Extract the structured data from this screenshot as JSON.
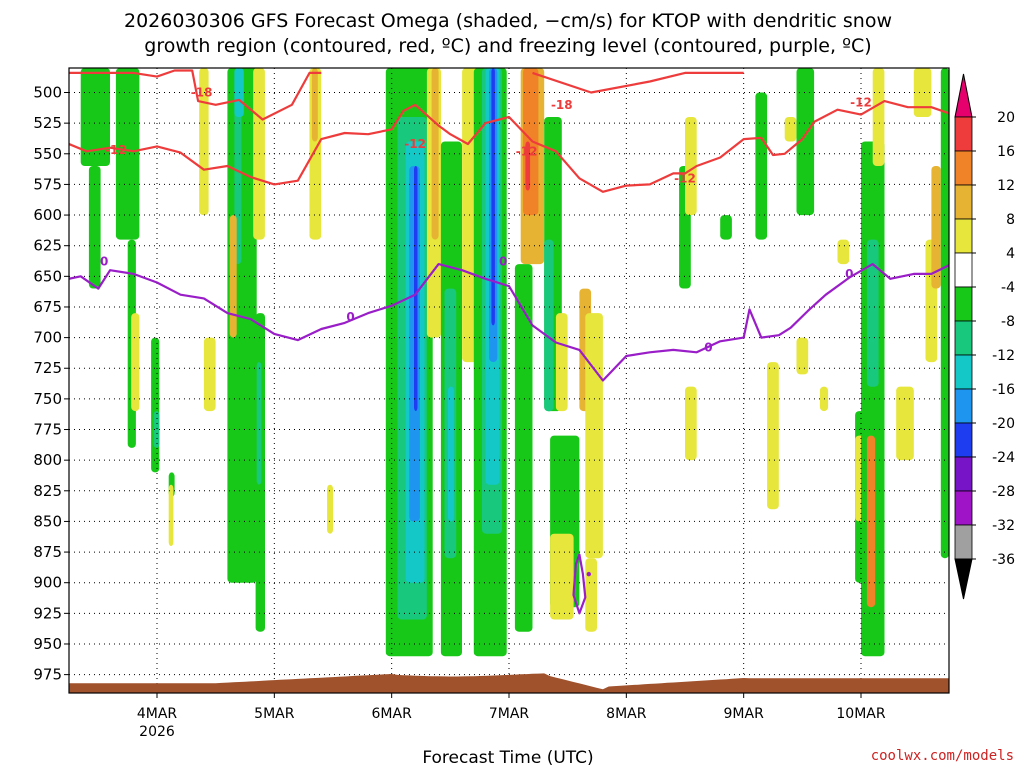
{
  "chart_data": {
    "type": "heatmap",
    "title": "2026030306 GFS Forecast Omega (shaded, −cm/s) for KTOP with dendritic snow",
    "subtitle": "growth region (contoured, red, ºC) and freezing level (contoured, purple, ºC)",
    "xlabel": "Forecast Time (UTC)",
    "credit": "coolwx.com/models",
    "x_day_start": 3.25,
    "x_day_end": 10.75,
    "x_ticks": [
      {
        "day": 4,
        "label": "4MAR",
        "sub": "2026"
      },
      {
        "day": 5,
        "label": "5MAR",
        "sub": ""
      },
      {
        "day": 6,
        "label": "6MAR",
        "sub": ""
      },
      {
        "day": 7,
        "label": "7MAR",
        "sub": ""
      },
      {
        "day": 8,
        "label": "8MAR",
        "sub": ""
      },
      {
        "day": 9,
        "label": "9MAR",
        "sub": ""
      },
      {
        "day": 10,
        "label": "10MAR",
        "sub": ""
      }
    ],
    "y_range_hpa": [
      480,
      990
    ],
    "y_ticks": [
      "500",
      "525",
      "550",
      "575",
      "600",
      "625",
      "650",
      "675",
      "700",
      "725",
      "750",
      "775",
      "800",
      "825",
      "850",
      "875",
      "900",
      "925",
      "950",
      "975"
    ],
    "colorbar": {
      "levels": [
        "20",
        "16",
        "12",
        "8",
        "4",
        "-4",
        "-8",
        "-12",
        "-16",
        "-20",
        "-24",
        "-28",
        "-32",
        "-36"
      ],
      "colors": [
        "#ee3c3c",
        "#f08228",
        "#e6b432",
        "#e6e63c",
        "#ffffff",
        "#18c818",
        "#18c87d",
        "#14c8c8",
        "#1e96f0",
        "#1e3cf0",
        "#7814c8",
        "#a014c8",
        "#a0a0a0"
      ],
      "top_arrow_color": "#e6006e",
      "bottom_arrow_color": "#000000"
    },
    "omega_shading": [
      {
        "d0": 3.35,
        "d1": 3.6,
        "p0": 480,
        "p1": 560,
        "cat": -8
      },
      {
        "d0": 3.42,
        "d1": 3.52,
        "p0": 560,
        "p1": 660,
        "cat": -8
      },
      {
        "d0": 3.65,
        "d1": 3.85,
        "p0": 480,
        "p1": 620,
        "cat": -8
      },
      {
        "d0": 3.75,
        "d1": 3.82,
        "p0": 620,
        "p1": 790,
        "cat": -8
      },
      {
        "d0": 3.78,
        "d1": 3.85,
        "p0": 680,
        "p1": 760,
        "cat": 4
      },
      {
        "d0": 3.95,
        "d1": 4.02,
        "p0": 700,
        "p1": 810,
        "cat": -8
      },
      {
        "d0": 3.97,
        "d1": 4.02,
        "p0": 760,
        "p1": 790,
        "cat": -12
      },
      {
        "d0": 4.36,
        "d1": 4.44,
        "p0": 480,
        "p1": 600,
        "cat": 4
      },
      {
        "d0": 4.4,
        "d1": 4.5,
        "p0": 700,
        "p1": 760,
        "cat": 4
      },
      {
        "d0": 4.1,
        "d1": 4.15,
        "p0": 810,
        "p1": 830,
        "cat": -8
      },
      {
        "d0": 4.1,
        "d1": 4.14,
        "p0": 820,
        "p1": 870,
        "cat": 4
      },
      {
        "d0": 4.62,
        "d1": 4.72,
        "p0": 480,
        "p1": 560,
        "cat": 4
      },
      {
        "d0": 4.6,
        "d1": 4.85,
        "p0": 480,
        "p1": 900,
        "cat": -8
      },
      {
        "d0": 4.66,
        "d1": 4.72,
        "p0": 480,
        "p1": 640,
        "cat": -12
      },
      {
        "d0": 4.66,
        "d1": 4.74,
        "p0": 480,
        "p1": 520,
        "cat": -16
      },
      {
        "d0": 4.62,
        "d1": 4.68,
        "p0": 600,
        "p1": 700,
        "cat": 8
      },
      {
        "d0": 4.82,
        "d1": 4.92,
        "p0": 480,
        "p1": 620,
        "cat": 4
      },
      {
        "d0": 4.84,
        "d1": 4.92,
        "p0": 680,
        "p1": 940,
        "cat": -8
      },
      {
        "d0": 4.85,
        "d1": 4.89,
        "p0": 720,
        "p1": 820,
        "cat": -12
      },
      {
        "d0": 5.3,
        "d1": 5.4,
        "p0": 480,
        "p1": 620,
        "cat": 4
      },
      {
        "d0": 5.32,
        "d1": 5.37,
        "p0": 480,
        "p1": 540,
        "cat": 8
      },
      {
        "d0": 5.45,
        "d1": 5.5,
        "p0": 820,
        "p1": 860,
        "cat": 4
      },
      {
        "d0": 5.95,
        "d1": 6.35,
        "p0": 480,
        "p1": 960,
        "cat": -8
      },
      {
        "d0": 6.05,
        "d1": 6.3,
        "p0": 520,
        "p1": 930,
        "cat": -12
      },
      {
        "d0": 6.12,
        "d1": 6.28,
        "p0": 540,
        "p1": 900,
        "cat": -16
      },
      {
        "d0": 6.15,
        "d1": 6.24,
        "p0": 560,
        "p1": 850,
        "cat": -20
      },
      {
        "d0": 6.19,
        "d1": 6.22,
        "p0": 560,
        "p1": 760,
        "cat": -24
      },
      {
        "d0": 6.3,
        "d1": 6.42,
        "p0": 480,
        "p1": 700,
        "cat": 4
      },
      {
        "d0": 6.34,
        "d1": 6.4,
        "p0": 480,
        "p1": 620,
        "cat": 8
      },
      {
        "d0": 6.42,
        "d1": 6.6,
        "p0": 540,
        "p1": 960,
        "cat": -8
      },
      {
        "d0": 6.45,
        "d1": 6.55,
        "p0": 660,
        "p1": 880,
        "cat": -12
      },
      {
        "d0": 6.48,
        "d1": 6.53,
        "p0": 740,
        "p1": 850,
        "cat": -16
      },
      {
        "d0": 6.6,
        "d1": 6.75,
        "p0": 480,
        "p1": 720,
        "cat": 4
      },
      {
        "d0": 6.7,
        "d1": 6.98,
        "p0": 480,
        "p1": 960,
        "cat": -8
      },
      {
        "d0": 6.77,
        "d1": 6.94,
        "p0": 480,
        "p1": 860,
        "cat": -12
      },
      {
        "d0": 6.8,
        "d1": 6.92,
        "p0": 480,
        "p1": 820,
        "cat": -16
      },
      {
        "d0": 6.83,
        "d1": 6.9,
        "p0": 480,
        "p1": 720,
        "cat": -20
      },
      {
        "d0": 6.85,
        "d1": 6.88,
        "p0": 480,
        "p1": 690,
        "cat": -24
      },
      {
        "d0": 7.1,
        "d1": 7.3,
        "p0": 480,
        "p1": 640,
        "cat": 8
      },
      {
        "d0": 7.12,
        "d1": 7.25,
        "p0": 480,
        "p1": 600,
        "cat": 12
      },
      {
        "d0": 7.14,
        "d1": 7.18,
        "p0": 540,
        "p1": 580,
        "cat": 16
      },
      {
        "d0": 7.05,
        "d1": 7.2,
        "p0": 640,
        "p1": 940,
        "cat": -8
      },
      {
        "d0": 7.3,
        "d1": 7.45,
        "p0": 520,
        "p1": 760,
        "cat": -8
      },
      {
        "d0": 7.3,
        "d1": 7.38,
        "p0": 620,
        "p1": 760,
        "cat": -12
      },
      {
        "d0": 7.4,
        "d1": 7.5,
        "p0": 680,
        "p1": 760,
        "cat": 4
      },
      {
        "d0": 7.35,
        "d1": 7.6,
        "p0": 780,
        "p1": 920,
        "cat": -8
      },
      {
        "d0": 7.35,
        "d1": 7.55,
        "p0": 860,
        "p1": 930,
        "cat": 4
      },
      {
        "d0": 7.6,
        "d1": 7.7,
        "p0": 660,
        "p1": 760,
        "cat": 8
      },
      {
        "d0": 7.65,
        "d1": 7.8,
        "p0": 680,
        "p1": 880,
        "cat": 4
      },
      {
        "d0": 7.65,
        "d1": 7.75,
        "p0": 880,
        "p1": 940,
        "cat": 4
      },
      {
        "d0": 8.45,
        "d1": 8.55,
        "p0": 560,
        "p1": 660,
        "cat": -8
      },
      {
        "d0": 8.5,
        "d1": 8.6,
        "p0": 740,
        "p1": 800,
        "cat": 4
      },
      {
        "d0": 8.5,
        "d1": 8.6,
        "p0": 520,
        "p1": 600,
        "cat": 4
      },
      {
        "d0": 8.8,
        "d1": 8.9,
        "p0": 600,
        "p1": 620,
        "cat": -8
      },
      {
        "d0": 9.1,
        "d1": 9.2,
        "p0": 500,
        "p1": 620,
        "cat": -8
      },
      {
        "d0": 9.2,
        "d1": 9.3,
        "p0": 720,
        "p1": 840,
        "cat": 4
      },
      {
        "d0": 9.35,
        "d1": 9.45,
        "p0": 520,
        "p1": 540,
        "cat": 4
      },
      {
        "d0": 9.45,
        "d1": 9.6,
        "p0": 480,
        "p1": 600,
        "cat": -8
      },
      {
        "d0": 9.45,
        "d1": 9.55,
        "p0": 700,
        "p1": 730,
        "cat": 4
      },
      {
        "d0": 9.65,
        "d1": 9.72,
        "p0": 740,
        "p1": 760,
        "cat": 4
      },
      {
        "d0": 9.8,
        "d1": 9.9,
        "p0": 620,
        "p1": 640,
        "cat": 4
      },
      {
        "d0": 9.95,
        "d1": 10.05,
        "p0": 760,
        "p1": 900,
        "cat": -8
      },
      {
        "d0": 9.95,
        "d1": 10.05,
        "p0": 780,
        "p1": 850,
        "cat": 4
      },
      {
        "d0": 10.0,
        "d1": 10.2,
        "p0": 540,
        "p1": 960,
        "cat": -8
      },
      {
        "d0": 10.05,
        "d1": 10.15,
        "p0": 620,
        "p1": 740,
        "cat": -12
      },
      {
        "d0": 10.05,
        "d1": 10.12,
        "p0": 780,
        "p1": 920,
        "cat": 12
      },
      {
        "d0": 10.1,
        "d1": 10.2,
        "p0": 480,
        "p1": 560,
        "cat": 4
      },
      {
        "d0": 10.3,
        "d1": 10.45,
        "p0": 740,
        "p1": 800,
        "cat": 4
      },
      {
        "d0": 10.45,
        "d1": 10.6,
        "p0": 480,
        "p1": 520,
        "cat": 4
      },
      {
        "d0": 10.55,
        "d1": 10.65,
        "p0": 620,
        "p1": 720,
        "cat": 4
      },
      {
        "d0": 10.6,
        "d1": 10.68,
        "p0": 560,
        "p1": 660,
        "cat": 8
      },
      {
        "d0": 10.68,
        "d1": 10.75,
        "p0": 480,
        "p1": 880,
        "cat": -8
      }
    ],
    "contour_minus18": [
      [
        3.25,
        484
      ],
      [
        3.8,
        484
      ],
      [
        4.0,
        487
      ],
      [
        4.15,
        482
      ],
      [
        4.3,
        482
      ],
      [
        4.35,
        507
      ],
      [
        4.5,
        510
      ],
      [
        4.7,
        506
      ],
      [
        4.9,
        522
      ],
      [
        5.15,
        510
      ],
      [
        5.3,
        484
      ],
      [
        5.4,
        484
      ]
    ],
    "contour_minus18b": [
      [
        7.2,
        484
      ],
      [
        7.7,
        500
      ],
      [
        8.2,
        491
      ],
      [
        8.5,
        484
      ],
      [
        9.0,
        484
      ]
    ],
    "contour_minus12": [
      [
        3.25,
        542
      ],
      [
        3.4,
        548
      ],
      [
        3.6,
        545
      ],
      [
        3.8,
        548
      ],
      [
        4.0,
        544
      ],
      [
        4.2,
        549
      ],
      [
        4.4,
        563
      ],
      [
        4.6,
        560
      ],
      [
        4.8,
        569
      ],
      [
        5.0,
        575
      ],
      [
        5.2,
        572
      ],
      [
        5.4,
        538
      ],
      [
        5.6,
        533
      ],
      [
        5.8,
        534
      ],
      [
        6.0,
        530
      ],
      [
        6.1,
        515
      ],
      [
        6.2,
        510
      ],
      [
        6.4,
        527
      ],
      [
        6.5,
        534
      ],
      [
        6.65,
        542
      ],
      [
        6.8,
        525
      ],
      [
        7.0,
        520
      ],
      [
        7.2,
        540
      ],
      [
        7.4,
        548
      ],
      [
        7.6,
        570
      ],
      [
        7.8,
        581
      ],
      [
        8.0,
        576
      ],
      [
        8.2,
        575
      ],
      [
        8.4,
        566
      ],
      [
        8.5,
        566
      ],
      [
        8.6,
        560
      ],
      [
        8.8,
        553
      ],
      [
        9.0,
        538
      ],
      [
        9.15,
        537
      ],
      [
        9.25,
        551
      ],
      [
        9.35,
        550
      ],
      [
        9.5,
        538
      ],
      [
        9.6,
        524
      ],
      [
        9.8,
        514
      ],
      [
        10.0,
        518
      ],
      [
        10.2,
        507
      ],
      [
        10.4,
        512
      ],
      [
        10.6,
        512
      ],
      [
        10.75,
        517
      ]
    ],
    "contour_zero": [
      [
        3.25,
        652
      ],
      [
        3.35,
        650
      ],
      [
        3.5,
        660
      ],
      [
        3.6,
        645
      ],
      [
        3.8,
        648
      ],
      [
        4.0,
        655
      ],
      [
        4.2,
        665
      ],
      [
        4.4,
        668
      ],
      [
        4.6,
        680
      ],
      [
        4.8,
        685
      ],
      [
        5.0,
        697
      ],
      [
        5.2,
        702
      ],
      [
        5.4,
        693
      ],
      [
        5.6,
        688
      ],
      [
        5.8,
        680
      ],
      [
        6.0,
        674
      ],
      [
        6.2,
        665
      ],
      [
        6.4,
        640
      ],
      [
        6.6,
        645
      ],
      [
        6.8,
        652
      ],
      [
        7.0,
        658
      ],
      [
        7.2,
        690
      ],
      [
        7.4,
        704
      ],
      [
        7.6,
        710
      ],
      [
        7.8,
        735
      ],
      [
        8.0,
        715
      ],
      [
        8.2,
        712
      ],
      [
        8.4,
        710
      ],
      [
        8.6,
        712
      ],
      [
        8.8,
        703
      ],
      [
        9.0,
        700
      ],
      [
        9.05,
        677
      ],
      [
        9.15,
        700
      ],
      [
        9.3,
        698
      ],
      [
        9.4,
        692
      ],
      [
        9.55,
        678
      ],
      [
        9.7,
        665
      ],
      [
        9.9,
        651
      ],
      [
        10.1,
        640
      ],
      [
        10.25,
        652
      ],
      [
        10.45,
        648
      ],
      [
        10.6,
        648
      ],
      [
        10.75,
        641
      ]
    ],
    "contour_zero_loop": [
      [
        7.6,
        877
      ],
      [
        7.63,
        893
      ],
      [
        7.65,
        912
      ],
      [
        7.6,
        925
      ],
      [
        7.55,
        910
      ],
      [
        7.57,
        885
      ]
    ],
    "contour_labels": [
      "-18",
      "-18",
      "-12",
      "-12",
      "-12",
      "-12",
      "-12",
      "0",
      "0",
      "0",
      "0",
      "0"
    ],
    "terrain_color": "#a0522d"
  }
}
